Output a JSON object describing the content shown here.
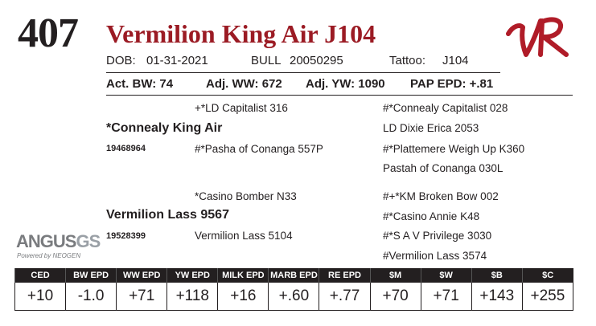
{
  "lot": "407",
  "animal": {
    "name": "Vermilion King Air J104"
  },
  "brand_color": "#9b1b24",
  "logo_text": "VR",
  "info": {
    "dob_label": "DOB:",
    "dob": "01-31-2021",
    "sex": "BULL",
    "reg": "20050295",
    "tattoo_label": "Tattoo:",
    "tattoo": "J104"
  },
  "performance": {
    "bw": "Act. BW: 74",
    "ww": "Adj. WW: 672",
    "yw": "Adj. YW: 1090",
    "pap": "PAP EPD: +.81"
  },
  "pedigree": {
    "sire": "*Connealy King Air",
    "sire_reg": "19468964",
    "ss": "+*LD Capitalist 316",
    "sd": "#*Pasha of Conanga 557P",
    "sss": "#*Connealy Capitalist 028",
    "ssd": "LD Dixie Erica 2053",
    "sds": "#*Plattemere Weigh Up K360",
    "sdd": "Pastah of Conanga 030L",
    "dam": "Vermilion Lass 9567",
    "dam_reg": "19528399",
    "ds": "*Casino Bomber N33",
    "dd": "Vermilion Lass 5104",
    "dss": "#+*KM Broken Bow 002",
    "dsd": "#*Casino Annie K48",
    "dds": "#*S A V Privilege 3030",
    "ddd": "#Vermilion Lass 3574"
  },
  "angus_logo": {
    "main": "ANGUS",
    "suffix": "GS",
    "tagline": "Powered by NEOGEN"
  },
  "epd": {
    "headers": [
      "CED",
      "BW EPD",
      "WW EPD",
      "YW EPD",
      "MILK EPD",
      "MARB EPD",
      "RE EPD",
      "$M",
      "$W",
      "$B",
      "$C"
    ],
    "values": [
      "+10",
      "-1.0",
      "+71",
      "+118",
      "+16",
      "+.60",
      "+.77",
      "+70",
      "+71",
      "+143",
      "+255"
    ]
  }
}
